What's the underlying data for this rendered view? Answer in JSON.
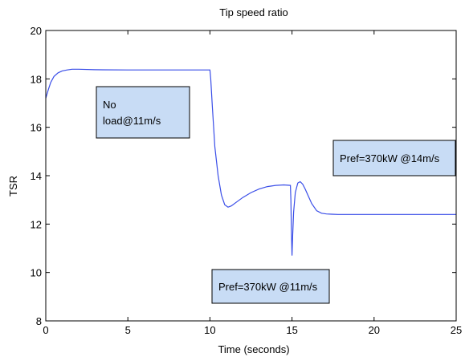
{
  "chart_data": {
    "type": "line",
    "title": "Tip speed ratio",
    "xlabel": "Time (seconds)",
    "ylabel": "TSR",
    "xlim": [
      0,
      25
    ],
    "ylim": [
      8,
      20
    ],
    "xticks": [
      0,
      5,
      10,
      15,
      20,
      25
    ],
    "yticks": [
      8,
      10,
      12,
      14,
      16,
      18,
      20
    ],
    "grid": false,
    "line_color": "#3a4ee8",
    "annotation_fill": "#c8dcf5",
    "series": [
      {
        "x": [
          0,
          0.15,
          0.3,
          0.5,
          0.75,
          1.0,
          1.3,
          1.6,
          2.0,
          3.0,
          5.0,
          8.0,
          10.0,
          10.05,
          10.15,
          10.3,
          10.5,
          10.7,
          10.9,
          11.1,
          11.3,
          11.6,
          12.0,
          12.5,
          13.0,
          13.5,
          14.0,
          14.5,
          14.9,
          14.93,
          14.96,
          15.0,
          15.04,
          15.1,
          15.2,
          15.35,
          15.5,
          15.65,
          15.8,
          16.0,
          16.2,
          16.5,
          16.8,
          17.1,
          17.4,
          17.8,
          18.5,
          20.0,
          22.0,
          25.0
        ],
        "y": [
          17.2,
          17.55,
          17.85,
          18.1,
          18.25,
          18.33,
          18.37,
          18.4,
          18.4,
          18.38,
          18.37,
          18.37,
          18.37,
          18.0,
          16.8,
          15.2,
          14.0,
          13.2,
          12.8,
          12.7,
          12.75,
          12.9,
          13.1,
          13.3,
          13.45,
          13.55,
          13.6,
          13.62,
          13.6,
          13.0,
          11.8,
          10.7,
          11.5,
          12.5,
          13.3,
          13.7,
          13.75,
          13.65,
          13.45,
          13.15,
          12.85,
          12.55,
          12.45,
          12.42,
          12.41,
          12.4,
          12.4,
          12.4,
          12.4,
          12.4
        ]
      }
    ],
    "annotations": [
      {
        "lines": [
          "No",
          "load@11m/s"
        ]
      },
      {
        "lines": [
          "Pref=370kW @14m/s"
        ]
      },
      {
        "lines": [
          "Pref=370kW @11m/s"
        ]
      }
    ]
  }
}
